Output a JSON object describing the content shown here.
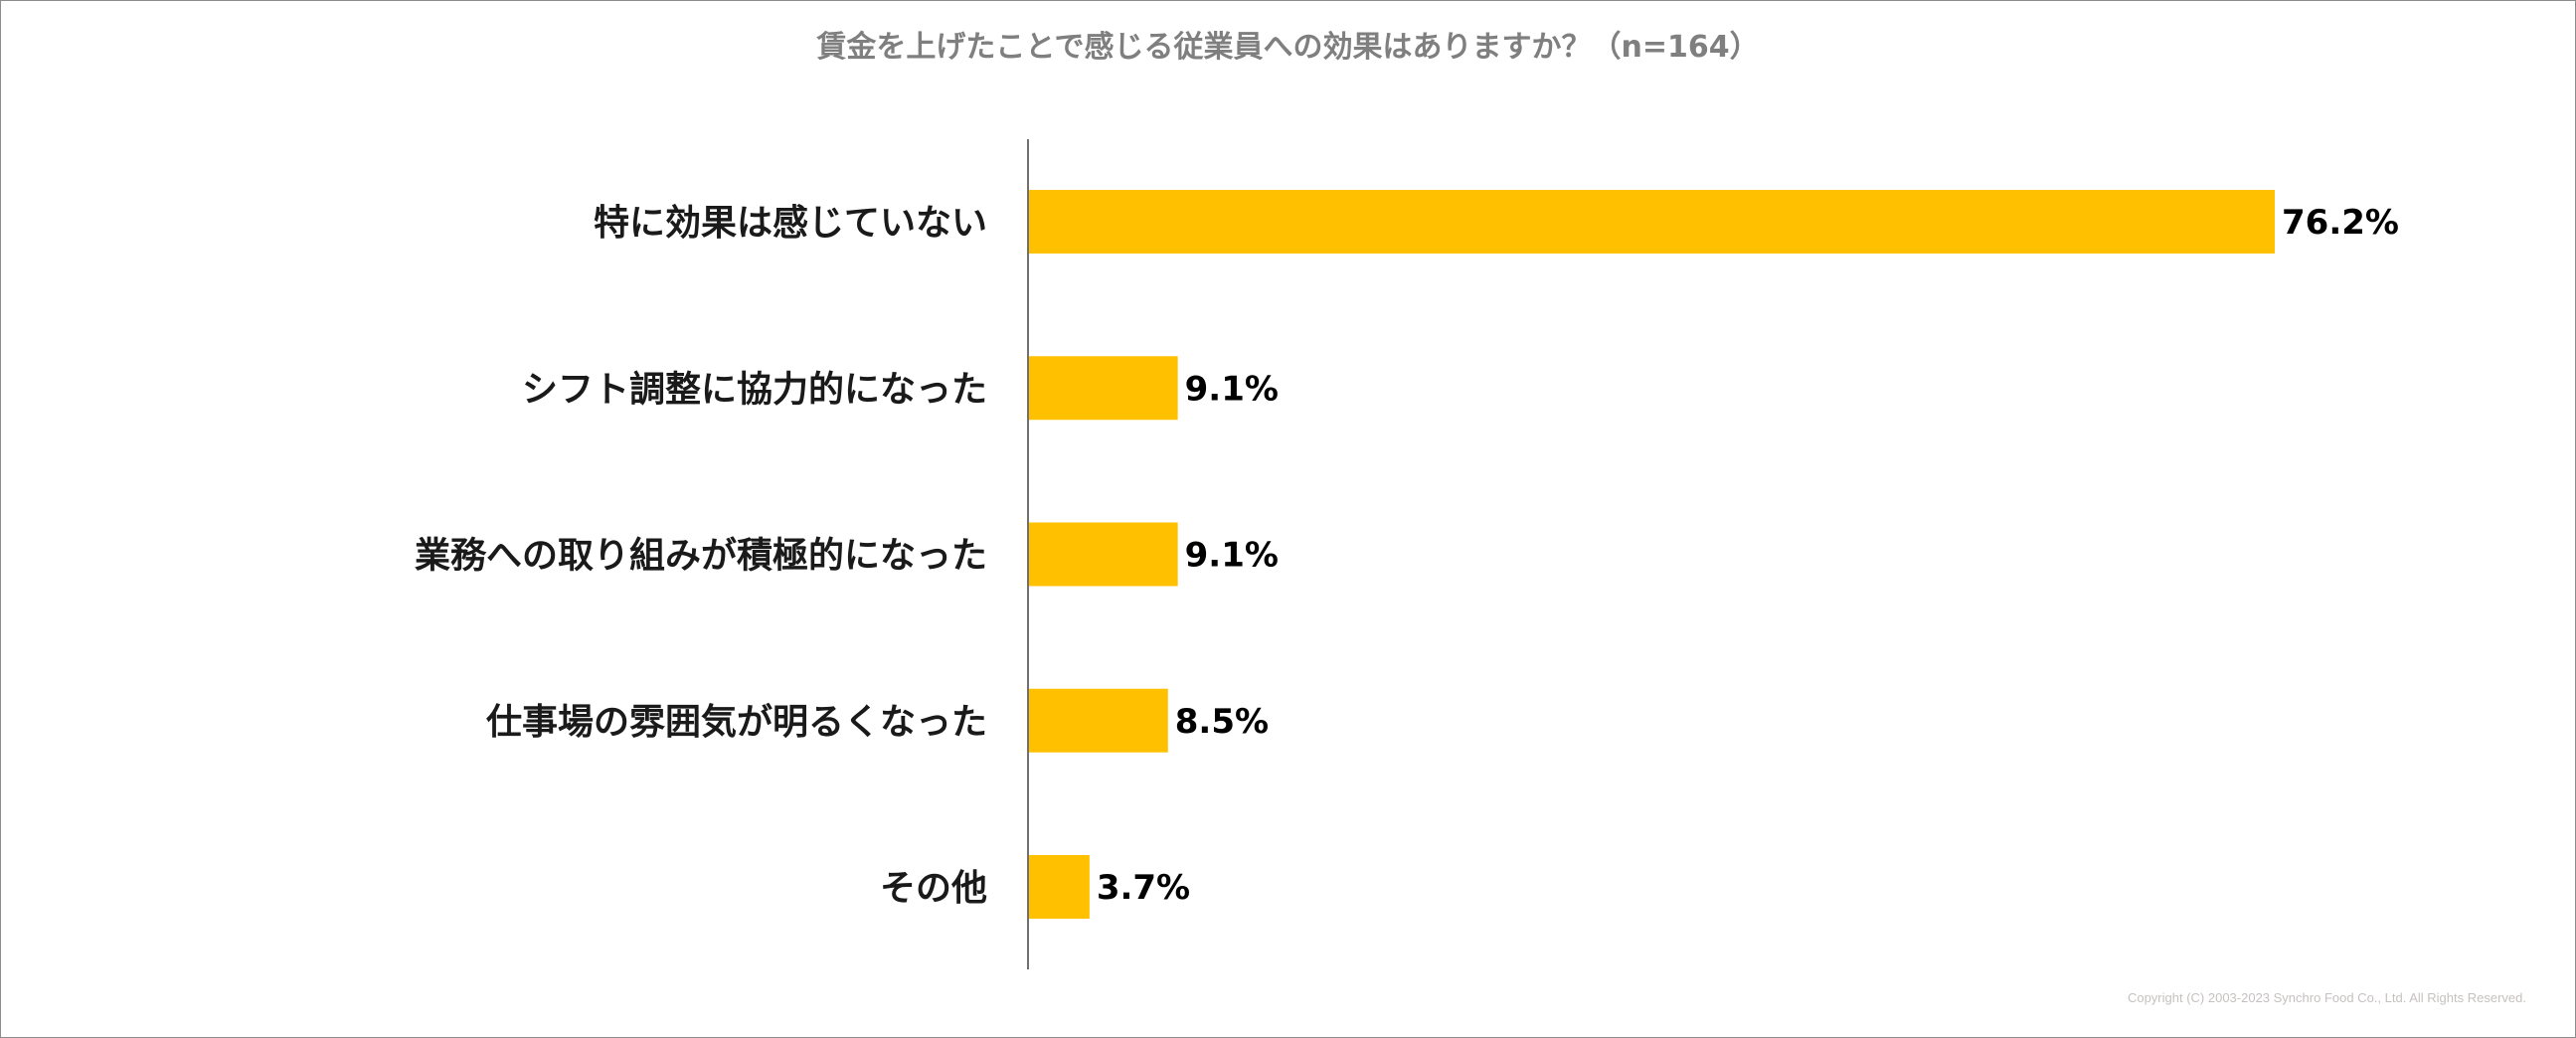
{
  "chart_data": {
    "type": "bar",
    "orientation": "horizontal",
    "title": "賃金を上げたことで感じる従業員への効果はありますか？（n=164）",
    "categories": [
      "特に効果は感じていない",
      "シフト調整に協力的になった",
      "業務への取り組みが積極的になった",
      "仕事場の雰囲気が明るくなった",
      "その他"
    ],
    "values": [
      76.2,
      9.1,
      9.1,
      8.5,
      3.7
    ],
    "value_labels": [
      "76.2%",
      "9.1%",
      "9.1%",
      "8.5%",
      "3.7%"
    ],
    "xlabel": "",
    "ylabel": "",
    "xlim": [
      0,
      100
    ],
    "grid": false,
    "bar_color": "#FFC000"
  },
  "copyright": "Copyright (C) 2003-2023   Synchro Food Co., Ltd. All Rights Reserved."
}
